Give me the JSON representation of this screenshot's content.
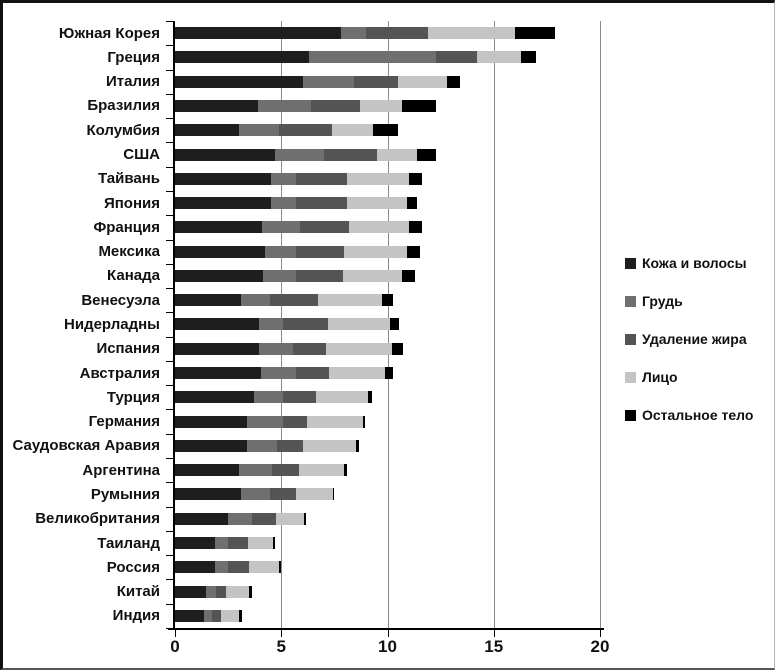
{
  "chart_data": {
    "type": "bar",
    "stacked": true,
    "orientation": "horizontal",
    "title": "",
    "xlabel": "",
    "ylabel": "",
    "xlim": [
      0,
      20
    ],
    "x_ticks": [
      0,
      5,
      10,
      15,
      20
    ],
    "gridlines_at": [
      5,
      10,
      15,
      20
    ],
    "grid": true,
    "legend_position": "right",
    "categories": [
      "Южная Корея",
      "Греция",
      "Италия",
      "Бразилия",
      "Колумбия",
      "США",
      "Тайвань",
      "Япония",
      "Франция",
      "Мексика",
      "Канада",
      "Венесуэла",
      "Нидерладны",
      "Испания",
      "Австралия",
      "Турция",
      "Германия",
      "Саудовская Аравия",
      "Аргентина",
      "Румыния",
      "Великобритания",
      "Таиланд",
      "Россия",
      "Китай",
      "Индия"
    ],
    "series": [
      {
        "name": "Кожа и волосы",
        "color": "#1e1e1e",
        "values": [
          7.8,
          6.3,
          6.0,
          3.9,
          3.0,
          4.7,
          4.5,
          4.5,
          4.1,
          4.25,
          4.15,
          3.1,
          3.95,
          3.95,
          4.05,
          3.7,
          3.4,
          3.4,
          3.0,
          3.1,
          2.5,
          1.9,
          1.9,
          1.45,
          1.35
        ]
      },
      {
        "name": "Грудь",
        "color": "#6f6f6f",
        "values": [
          1.2,
          6.0,
          2.4,
          2.5,
          1.9,
          2.3,
          1.2,
          1.2,
          1.8,
          1.45,
          1.55,
          1.35,
          1.15,
          1.6,
          1.65,
          1.4,
          1.7,
          1.4,
          1.55,
          1.35,
          1.1,
          0.6,
          0.6,
          0.5,
          0.4
        ]
      },
      {
        "name": "Удаление жира",
        "color": "#545454",
        "values": [
          2.9,
          1.9,
          2.1,
          2.3,
          2.5,
          2.5,
          2.4,
          2.4,
          2.3,
          2.25,
          2.2,
          2.3,
          2.1,
          1.55,
          1.55,
          1.55,
          1.1,
          1.2,
          1.3,
          1.25,
          1.15,
          0.95,
          1.0,
          0.45,
          0.4
        ]
      },
      {
        "name": "Лицо",
        "color": "#c4c4c4",
        "values": [
          4.1,
          2.1,
          2.3,
          2.0,
          1.9,
          1.9,
          2.9,
          2.8,
          2.8,
          2.95,
          2.8,
          3.0,
          2.9,
          3.1,
          2.65,
          2.45,
          2.65,
          2.5,
          2.1,
          1.75,
          1.3,
          1.15,
          1.4,
          1.1,
          0.85
        ]
      },
      {
        "name": "Остальное тело",
        "color": "#000000",
        "values": [
          1.9,
          0.7,
          0.6,
          1.6,
          1.2,
          0.9,
          0.6,
          0.5,
          0.6,
          0.65,
          0.6,
          0.5,
          0.45,
          0.55,
          0.35,
          0.15,
          0.1,
          0.15,
          0.15,
          0.05,
          0.1,
          0.1,
          0.1,
          0.1,
          0.15
        ]
      }
    ]
  },
  "layout_colors": {
    "gridline": "#8a8a8a",
    "axis": "#000000",
    "text": "#111111",
    "background": "#ffffff"
  }
}
